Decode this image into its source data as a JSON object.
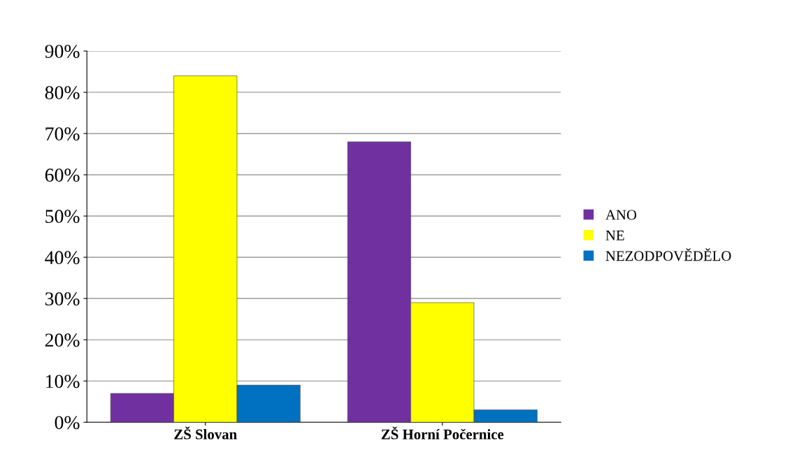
{
  "chart_data": {
    "type": "bar",
    "categories": [
      "ZŠ Slovan",
      "ZŠ Horní Počernice"
    ],
    "series": [
      {
        "name": "ANO",
        "color": "#7030a0",
        "values": [
          7,
          68
        ]
      },
      {
        "name": "NE",
        "color": "#ffff00",
        "values": [
          84,
          29
        ]
      },
      {
        "name": "NEZODPOVĚDĚLO",
        "color": "#0070c0",
        "values": [
          9,
          3
        ]
      }
    ],
    "ylim": [
      0,
      90
    ],
    "yticks": [
      {
        "value": 0,
        "label": "0%"
      },
      {
        "value": 10,
        "label": "10%"
      },
      {
        "value": 20,
        "label": "20%"
      },
      {
        "value": 30,
        "label": "30%"
      },
      {
        "value": 40,
        "label": "40%"
      },
      {
        "value": 50,
        "label": "50%"
      },
      {
        "value": 60,
        "label": "60%"
      },
      {
        "value": 70,
        "label": "70%"
      },
      {
        "value": 80,
        "label": "80%"
      },
      {
        "value": 90,
        "label": "90%"
      }
    ],
    "grid": "y",
    "legend": "right"
  }
}
